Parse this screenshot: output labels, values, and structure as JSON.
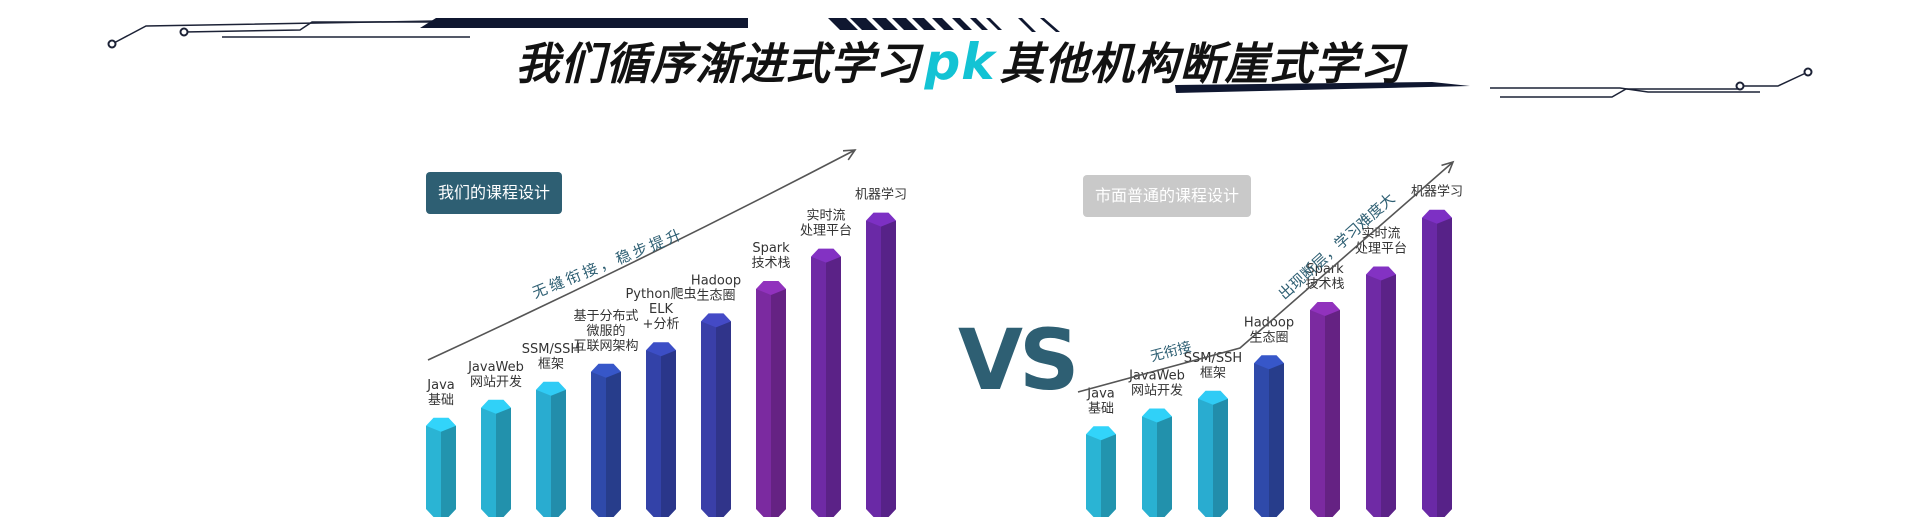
{
  "heading": {
    "before": "我们循序渐进式学习",
    "pk": "pk",
    "after": "其他机构断崖式学习"
  },
  "colors": {
    "accent": "#13c3d4",
    "dark_teal": "#2e5f73",
    "navy": "#0f1730"
  },
  "ours": {
    "badge": "我们的课程设计",
    "curve_text": "无缝衔接，稳步提升",
    "bars": [
      {
        "label": [
          "Java",
          "基础"
        ],
        "level": 0.27,
        "color": "#2ab4d4"
      },
      {
        "label": [
          "JavaWeb",
          "网站开发"
        ],
        "level": 0.32,
        "color": "#29b1d2"
      },
      {
        "label": [
          "SSM/SSH",
          "框架"
        ],
        "level": 0.37,
        "color": "#29acd0"
      },
      {
        "label": [
          "基于分布式",
          "微服的",
          "互联网架构"
        ],
        "level": 0.42,
        "color": "#2f4aaa"
      },
      {
        "label": [
          "Python爬虫",
          "ELK",
          "+分析"
        ],
        "level": 0.48,
        "color": "#3342a8"
      },
      {
        "label": [
          "Hadoop",
          "生态圈"
        ],
        "level": 0.56,
        "color": "#3a3fa8"
      },
      {
        "label": [
          "Spark",
          "技术栈"
        ],
        "level": 0.65,
        "color": "#7b2aa0"
      },
      {
        "label": [
          "实时流",
          "处理平台"
        ],
        "level": 0.74,
        "color": "#6f2aa5"
      },
      {
        "label": [
          "机器学习"
        ],
        "level": 0.84,
        "color": "#6a29a6"
      }
    ]
  },
  "vs_text": "VS",
  "market": {
    "badge": "市面普通的课程设计",
    "curve_text_flat": "无衔接",
    "curve_text_steep": "出现断层，学习难度大",
    "bars": [
      {
        "label": [
          "Java",
          "基础"
        ],
        "level": 0.25,
        "color": "#2ab4d4"
      },
      {
        "label": [
          "JavaWeb",
          "网站开发"
        ],
        "level": 0.3,
        "color": "#29b1d2"
      },
      {
        "label": [
          "SSM/SSH",
          "框架"
        ],
        "level": 0.35,
        "color": "#29acd0"
      },
      {
        "label": [
          "Hadoop",
          "生态圈"
        ],
        "level": 0.45,
        "color": "#2f4aaa"
      },
      {
        "label": [
          "Spark",
          "技术栈"
        ],
        "level": 0.6,
        "color": "#7b2aa0"
      },
      {
        "label": [
          "实时流",
          "处理平台"
        ],
        "level": 0.7,
        "color": "#6f2aa5"
      },
      {
        "label": [
          "机器学习"
        ],
        "level": 0.86,
        "color": "#6a29a6"
      }
    ]
  }
}
